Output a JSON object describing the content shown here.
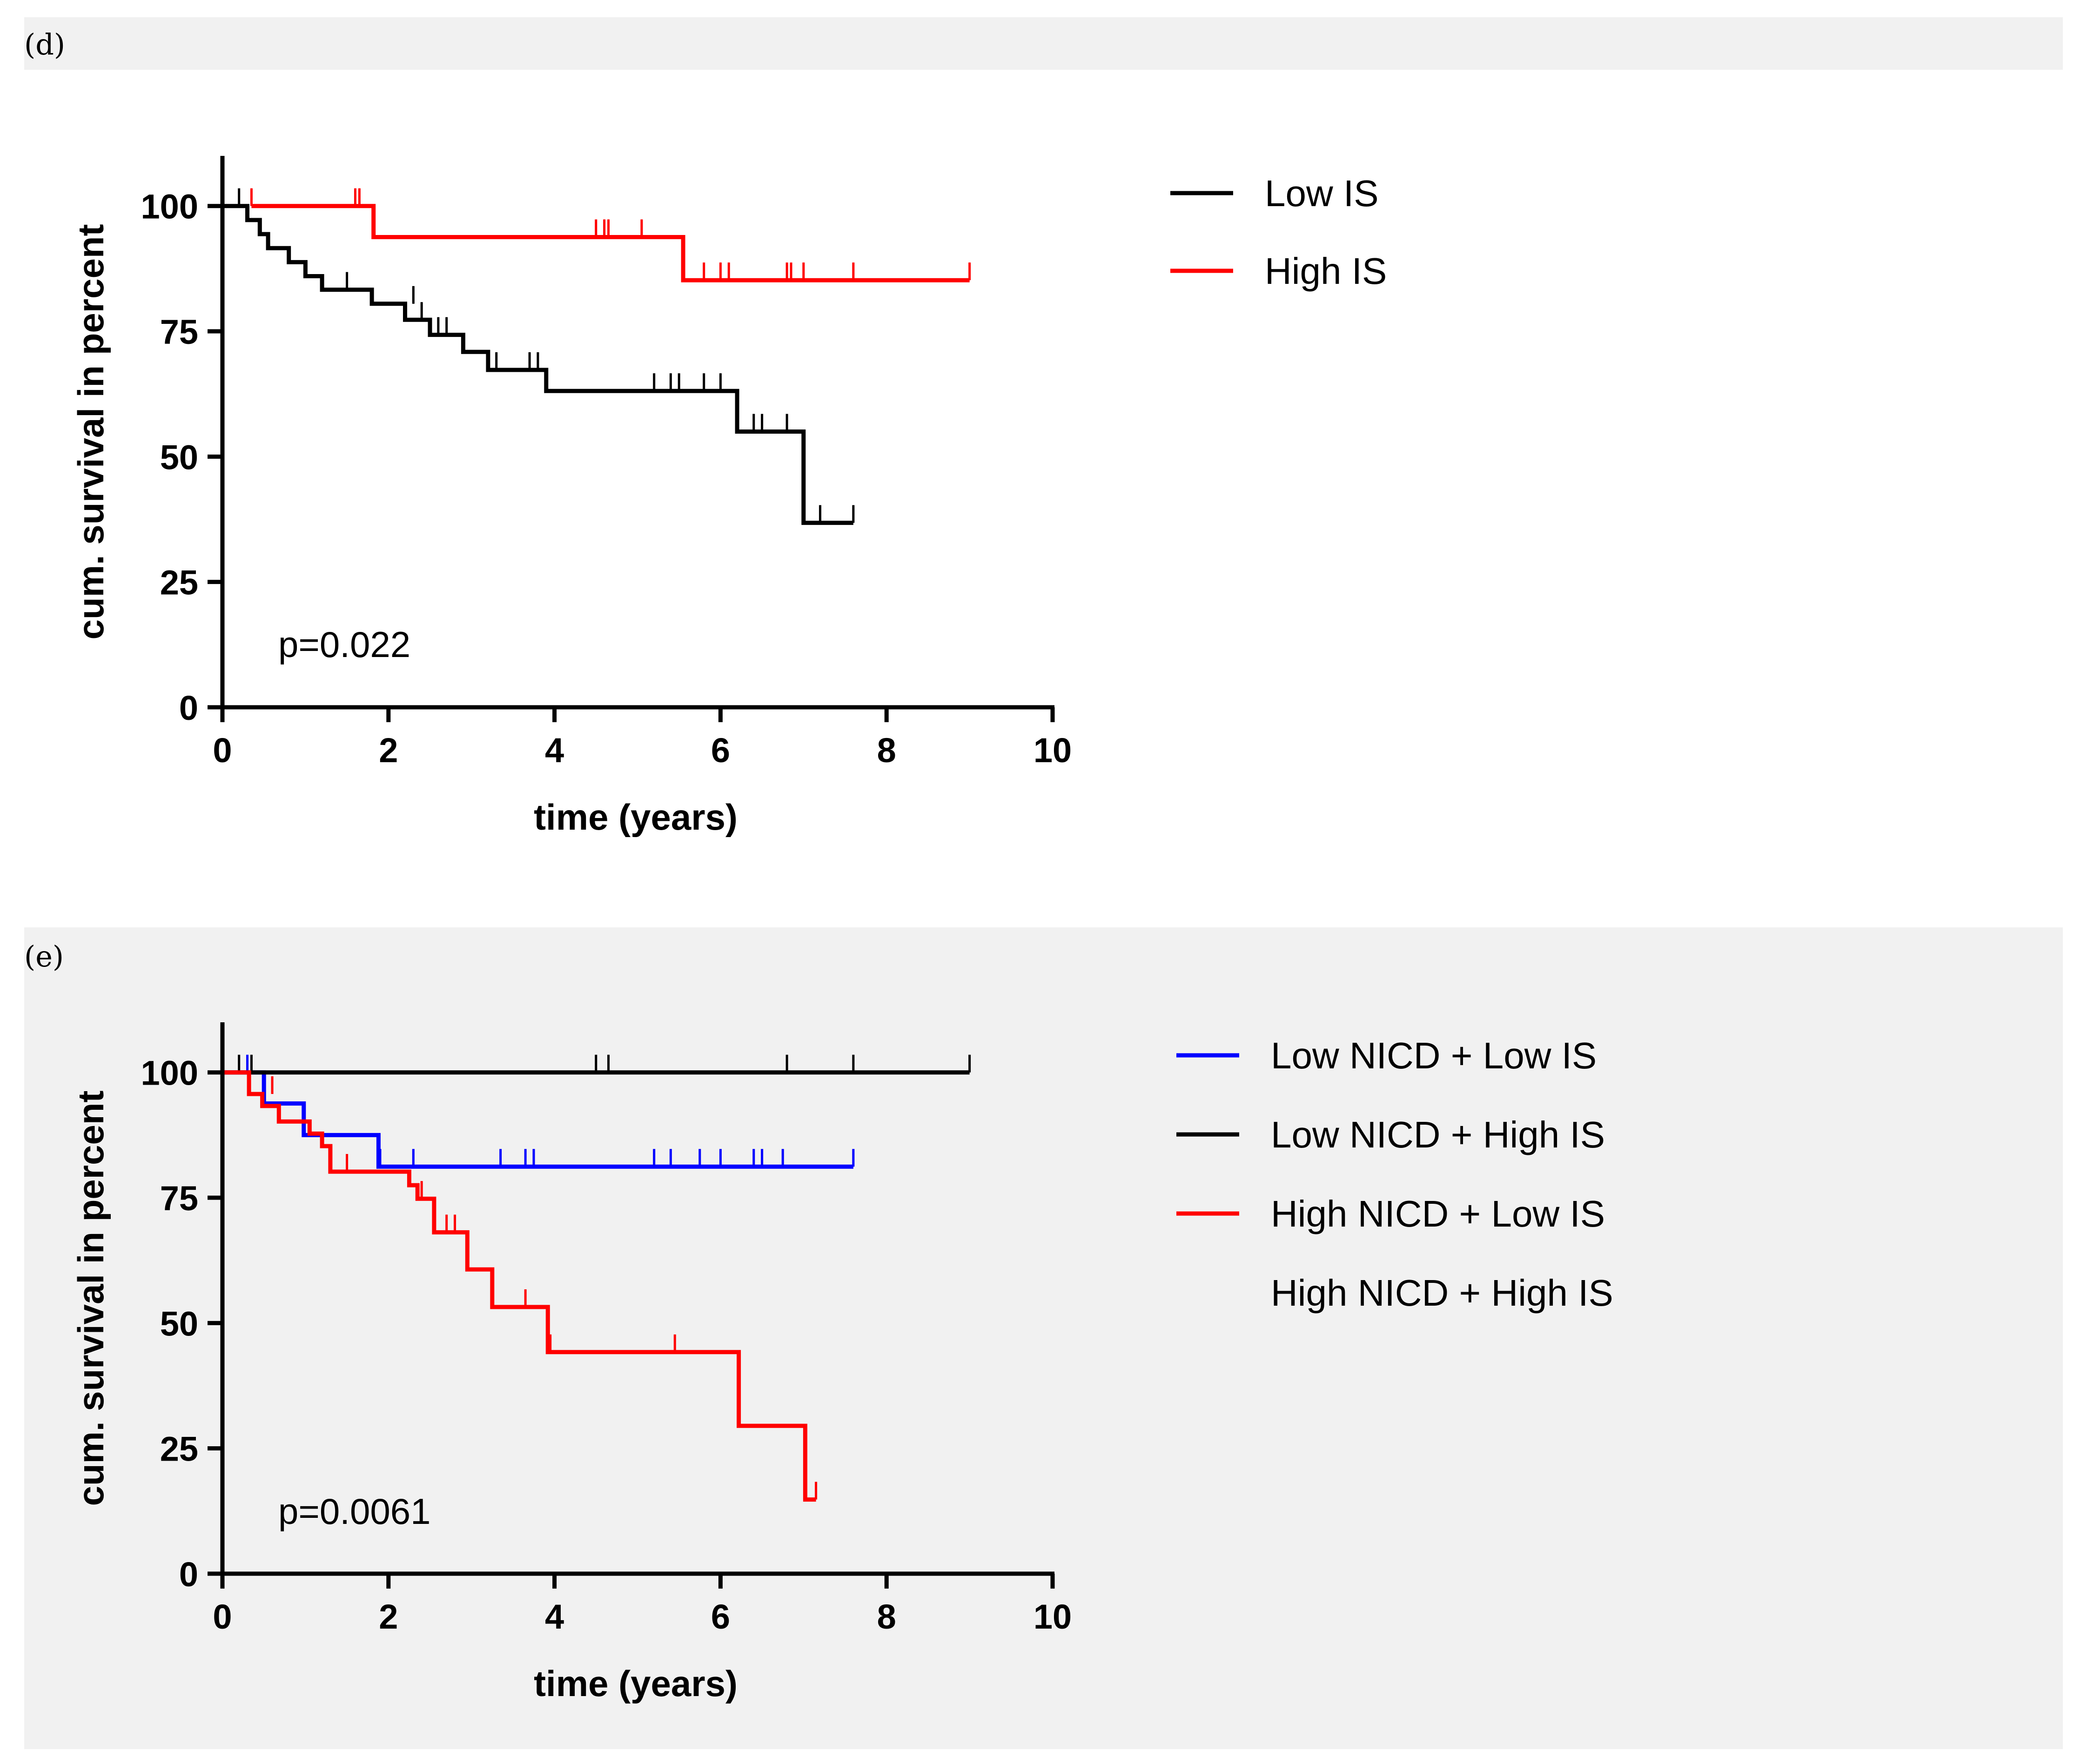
{
  "chart_data": [
    {
      "type": "line",
      "subtype": "kaplan-meier",
      "panel": "(d)",
      "xlabel": "time (years)",
      "ylabel": "cum. survival in percent",
      "xlim": [
        0,
        10
      ],
      "ylim": [
        0,
        110
      ],
      "xticks": [
        "0",
        "2",
        "4",
        "6",
        "8",
        "10"
      ],
      "yticks": [
        "0",
        "25",
        "50",
        "75",
        "100"
      ],
      "annotation": "p=0.022",
      "legend_position": "right",
      "series": [
        {
          "name": "Low IS",
          "color": "#000000",
          "steps": [
            [
              0,
              100
            ],
            [
              0.3,
              100
            ],
            [
              0.3,
              97.2
            ],
            [
              0.45,
              97.2
            ],
            [
              0.45,
              94.4
            ],
            [
              0.55,
              94.4
            ],
            [
              0.55,
              91.6
            ],
            [
              0.8,
              91.6
            ],
            [
              0.8,
              88.8
            ],
            [
              1.0,
              88.8
            ],
            [
              1.0,
              86
            ],
            [
              1.2,
              86
            ],
            [
              1.2,
              83.3
            ],
            [
              1.8,
              83.3
            ],
            [
              1.8,
              80.5
            ],
            [
              2.2,
              80.5
            ],
            [
              2.2,
              77.3
            ],
            [
              2.5,
              77.3
            ],
            [
              2.5,
              74.3
            ],
            [
              2.9,
              74.3
            ],
            [
              2.9,
              70.9
            ],
            [
              3.2,
              70.9
            ],
            [
              3.2,
              67.3
            ],
            [
              3.9,
              67.3
            ],
            [
              3.9,
              63.1
            ],
            [
              6.2,
              63.1
            ],
            [
              6.2,
              55
            ],
            [
              7.0,
              55
            ],
            [
              7.0,
              36.8
            ],
            [
              7.6,
              36.8
            ]
          ],
          "censored": [
            [
              0.2,
              100
            ],
            [
              1.5,
              83.3
            ],
            [
              2.3,
              80.5
            ],
            [
              2.4,
              77.3
            ],
            [
              2.6,
              74.3
            ],
            [
              2.7,
              74.3
            ],
            [
              3.3,
              67.3
            ],
            [
              3.7,
              67.3
            ],
            [
              3.8,
              67.3
            ],
            [
              5.2,
              63.1
            ],
            [
              5.4,
              63.1
            ],
            [
              5.5,
              63.1
            ],
            [
              5.8,
              63.1
            ],
            [
              6.0,
              63.1
            ],
            [
              6.4,
              55
            ],
            [
              6.5,
              55
            ],
            [
              6.8,
              55
            ],
            [
              7.2,
              36.8
            ],
            [
              7.6,
              36.8
            ]
          ]
        },
        {
          "name": "High IS",
          "color": "#ff0000",
          "steps": [
            [
              0.35,
              100
            ],
            [
              1.82,
              100
            ],
            [
              1.82,
              93.8
            ],
            [
              5.55,
              93.8
            ],
            [
              5.55,
              85.2
            ],
            [
              9.0,
              85.2
            ]
          ],
          "censored": [
            [
              0.35,
              100
            ],
            [
              1.6,
              100
            ],
            [
              1.65,
              100
            ],
            [
              4.5,
              93.8
            ],
            [
              4.6,
              93.8
            ],
            [
              4.65,
              93.8
            ],
            [
              5.05,
              93.8
            ],
            [
              5.8,
              85.2
            ],
            [
              6.0,
              85.2
            ],
            [
              6.1,
              85.2
            ],
            [
              6.8,
              85.2
            ],
            [
              6.85,
              85.2
            ],
            [
              7.0,
              85.2
            ],
            [
              7.6,
              85.2
            ],
            [
              9.0,
              85.2
            ]
          ]
        }
      ]
    },
    {
      "type": "line",
      "subtype": "kaplan-meier",
      "panel": "(e)",
      "xlabel": "time (years)",
      "ylabel": "cum. survival in percent",
      "xlim": [
        0,
        10
      ],
      "ylim": [
        0,
        110
      ],
      "xticks": [
        "0",
        "2",
        "4",
        "6",
        "8",
        "10"
      ],
      "yticks": [
        "0",
        "25",
        "50",
        "75",
        "100"
      ],
      "annotation": "p=0.0061",
      "legend_position": "right",
      "series": [
        {
          "name": "Low NICD + Low IS",
          "color": "#0000ff",
          "steps": [
            [
              0,
              100
            ],
            [
              0.5,
              100
            ],
            [
              0.5,
              93.8
            ],
            [
              0.98,
              93.8
            ],
            [
              0.98,
              87.5
            ],
            [
              1.88,
              87.5
            ],
            [
              1.88,
              81.2
            ],
            [
              7.6,
              81.2
            ]
          ],
          "censored": [
            [
              0.3,
              100
            ],
            [
              1.9,
              81.2
            ],
            [
              2.3,
              81.2
            ],
            [
              3.35,
              81.2
            ],
            [
              3.65,
              81.2
            ],
            [
              3.75,
              81.2
            ],
            [
              5.2,
              81.2
            ],
            [
              5.4,
              81.2
            ],
            [
              5.75,
              81.2
            ],
            [
              6.0,
              81.2
            ],
            [
              6.4,
              81.2
            ],
            [
              6.5,
              81.2
            ],
            [
              6.75,
              81.2
            ],
            [
              7.6,
              81.2
            ]
          ]
        },
        {
          "name": "Low NICD + High IS",
          "color": "#000000",
          "steps": [
            [
              0,
              100
            ],
            [
              9.0,
              100
            ]
          ],
          "censored": [
            [
              0.2,
              100
            ],
            [
              0.35,
              100
            ],
            [
              4.5,
              100
            ],
            [
              4.65,
              100
            ],
            [
              6.8,
              100
            ],
            [
              7.6,
              100
            ],
            [
              9.0,
              100
            ]
          ]
        },
        {
          "name": "High NICD + Low IS",
          "color": "#ff0000",
          "steps": [
            [
              0,
              100
            ],
            [
              0.32,
              100
            ],
            [
              0.32,
              95.7
            ],
            [
              0.48,
              95.7
            ],
            [
              0.48,
              93.3
            ],
            [
              0.68,
              93.3
            ],
            [
              0.68,
              90.2
            ],
            [
              1.05,
              90.2
            ],
            [
              1.05,
              87.8
            ],
            [
              1.2,
              87.8
            ],
            [
              1.2,
              85.3
            ],
            [
              1.3,
              85.3
            ],
            [
              1.3,
              80.2
            ],
            [
              2.25,
              80.2
            ],
            [
              2.25,
              77.5
            ],
            [
              2.35,
              77.5
            ],
            [
              2.35,
              74.8
            ],
            [
              2.55,
              74.8
            ],
            [
              2.55,
              68.1
            ],
            [
              2.95,
              68.1
            ],
            [
              2.95,
              60.7
            ],
            [
              3.25,
              60.7
            ],
            [
              3.25,
              53.2
            ],
            [
              3.92,
              53.2
            ],
            [
              3.92,
              44.2
            ],
            [
              6.22,
              44.2
            ],
            [
              6.22,
              29.5
            ],
            [
              7.02,
              29.5
            ],
            [
              7.02,
              14.8
            ],
            [
              7.15,
              14.8
            ]
          ],
          "censored": [
            [
              0.6,
              95.7
            ],
            [
              1.5,
              80.2
            ],
            [
              2.4,
              74.8
            ],
            [
              2.7,
              68.1
            ],
            [
              2.8,
              68.1
            ],
            [
              3.65,
              53.2
            ],
            [
              3.95,
              44.2
            ],
            [
              5.45,
              44.2
            ],
            [
              7.15,
              14.8
            ]
          ]
        },
        {
          "name": "High NICD + High IS",
          "color": "#f1f1f1",
          "steps": [],
          "censored": []
        }
      ]
    }
  ]
}
